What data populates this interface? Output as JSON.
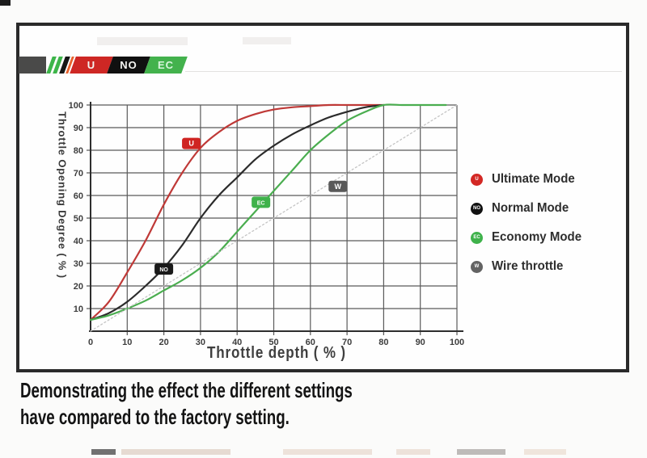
{
  "logo": {
    "badge_u": "U",
    "badge_no": "NO",
    "badge_ec": "EC",
    "colors": {
      "bar_gray": "#4a4a49",
      "stripe_green": "#3db54a",
      "stripe_black": "#161616",
      "stripe_orange": "#e8622d",
      "red": "#ce2724",
      "black": "#101010",
      "green": "#43b24d",
      "letter_white": "#f5f5f2",
      "letter_ec": "#d8f5dd"
    }
  },
  "chart_data": {
    "type": "line",
    "title": "",
    "xlabel": "Throttle depth ( % )",
    "ylabel": "Throttle Opening Degree ( % )",
    "xlim": [
      0,
      100
    ],
    "ylim": [
      0,
      100
    ],
    "xticks": [
      0,
      10,
      20,
      30,
      40,
      50,
      60,
      70,
      80,
      90,
      100
    ],
    "yticks": [
      10,
      20,
      30,
      40,
      50,
      60,
      70,
      80,
      90,
      100
    ],
    "grid": true,
    "legend_position": "right-outside",
    "series": [
      {
        "name": "Ultimate Mode",
        "color": "#bf3937",
        "badge_color": "#cf2422",
        "style": "solid",
        "marker_label": "U",
        "marker_pos": {
          "x": 27.5,
          "y": 83
        },
        "x": [
          0,
          5,
          10,
          15,
          20,
          25,
          30,
          35,
          40,
          45,
          50,
          55,
          60,
          65,
          70,
          75,
          80
        ],
        "y": [
          5,
          13,
          26,
          40,
          56,
          70,
          81,
          88,
          93,
          96,
          98,
          99,
          99.5,
          100,
          100,
          100,
          100
        ]
      },
      {
        "name": "Normal Mode",
        "color": "#2b2b2b",
        "badge_color": "#1a1a1a",
        "style": "solid",
        "marker_label": "NO",
        "marker_pos": {
          "x": 20,
          "y": 27.5
        },
        "x": [
          0,
          5,
          10,
          15,
          20,
          25,
          30,
          35,
          40,
          45,
          50,
          55,
          60,
          65,
          70,
          75,
          80
        ],
        "y": [
          5,
          8,
          13,
          20,
          28,
          38,
          50,
          60,
          68,
          76,
          82,
          87,
          91,
          94.5,
          97,
          99,
          100
        ]
      },
      {
        "name": "Economy Mode",
        "color": "#4aad4f",
        "badge_color": "#3fb24b",
        "style": "solid",
        "marker_label": "EC",
        "marker_pos": {
          "x": 46.5,
          "y": 57
        },
        "x": [
          0,
          5,
          10,
          15,
          20,
          25,
          30,
          35,
          40,
          45,
          50,
          55,
          60,
          65,
          70,
          75,
          80,
          85,
          90,
          97
        ],
        "y": [
          5,
          7,
          10,
          13.5,
          18,
          22.5,
          28,
          35,
          44,
          53,
          62,
          71,
          80,
          87,
          93,
          97,
          100,
          100,
          100,
          100
        ]
      },
      {
        "name": "Wire throttle",
        "color": "#c4c4c4",
        "badge_color": "#595959",
        "style": "dotted",
        "marker_label": "W",
        "marker_pos": {
          "x": 67.5,
          "y": 64
        },
        "x": [
          0,
          100
        ],
        "y": [
          0,
          100
        ]
      }
    ]
  },
  "legend": {
    "items": [
      {
        "label": "Ultimate Mode",
        "badge": "U",
        "color": "#d32824"
      },
      {
        "label": "Normal Mode",
        "badge": "NO",
        "color": "#111111"
      },
      {
        "label": "Economy Mode",
        "badge": "EC",
        "color": "#3fb24b"
      },
      {
        "label": "Wire throttle",
        "badge": "W",
        "color": "#636363"
      }
    ]
  },
  "caption": {
    "line1": "Demonstrating the effect the different settings",
    "line2": "have compared to the factory setting."
  }
}
